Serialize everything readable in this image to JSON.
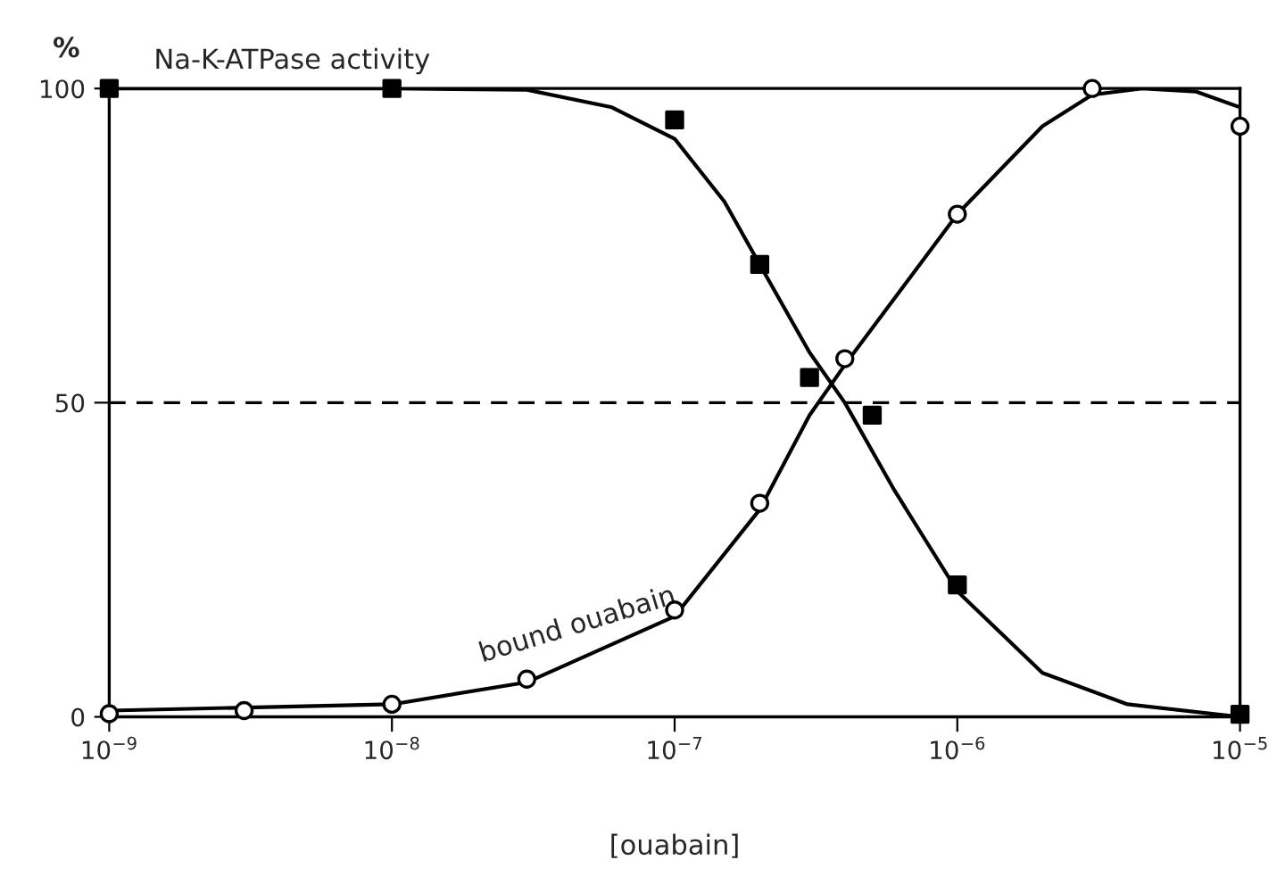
{
  "chart_data": {
    "type": "scatter",
    "xlabel": "[ouabain]",
    "ylabel": "%",
    "log": "x",
    "grid": false,
    "legend": false,
    "xlim": [
      1e-09,
      1e-05
    ],
    "xticks": [
      {
        "value": 1e-09,
        "label": "10$^{−9}$"
      },
      {
        "value": 1e-08,
        "label": "10$^{−8}$"
      },
      {
        "value": 1e-07,
        "label": "10$^{−7}$"
      },
      {
        "value": 1e-06,
        "label": "10$^{−6}$"
      },
      {
        "value": 1e-05,
        "label": "10$^{−5}$"
      }
    ],
    "ylim": [
      0,
      100
    ],
    "yticks": [
      0,
      50,
      100
    ],
    "ref_lines": [
      {
        "axis": "y",
        "value": 50,
        "line_style": "dashed",
        "color": "#000000"
      }
    ],
    "series": [
      {
        "marker": "square",
        "color": "#000000",
        "x": [
          1e-09,
          1e-08,
          1e-07,
          2e-07,
          3e-07,
          5e-07,
          1e-06,
          1e-05
        ],
        "values": [
          100,
          100,
          95,
          72,
          54,
          48,
          21,
          0.4
        ]
      },
      {
        "marker": "circle",
        "color": "#000000",
        "x": [
          1e-09,
          3e-09,
          1e-08,
          3e-08,
          1e-07,
          2e-07,
          4e-07,
          1e-06,
          3e-06,
          1e-05
        ],
        "values": [
          0.5,
          1,
          2,
          6,
          17,
          34,
          57,
          80,
          100,
          94
        ]
      },
      {
        "type": "line",
        "name": "Na-K-ATPase activity",
        "marker": "none",
        "line_style": "solid",
        "color": "#000000",
        "x": [
          1e-09,
          1e-08,
          3e-08,
          6e-08,
          1e-07,
          1.5e-07,
          2e-07,
          3e-07,
          4e-07,
          6e-07,
          1e-06,
          2e-06,
          4e-06,
          1e-05
        ],
        "values": [
          100,
          100,
          99.8,
          97,
          92,
          82,
          72,
          58,
          50,
          36,
          20,
          7,
          2,
          0
        ]
      },
      {
        "type": "line",
        "name": "bound ouabain",
        "marker": "none",
        "line_style": "solid",
        "color": "#000000",
        "x": [
          1e-09,
          1e-08,
          3e-08,
          1e-07,
          2e-07,
          3e-07,
          4e-07,
          1e-06,
          2e-06,
          3e-06,
          4.5e-06,
          7e-06,
          1e-05
        ],
        "values": [
          1,
          2,
          5.5,
          16,
          33,
          48,
          56,
          80,
          94,
          99,
          100,
          99.5,
          97
        ]
      }
    ]
  }
}
